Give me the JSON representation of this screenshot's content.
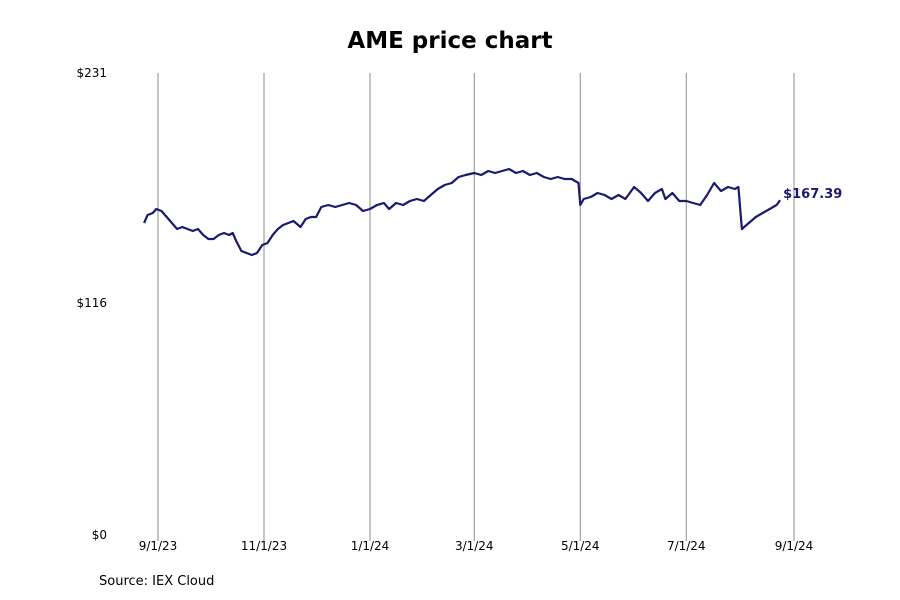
{
  "chart_data": {
    "type": "line",
    "title": "AME price chart",
    "source": "Source: IEX Cloud",
    "ylim": [
      0,
      231
    ],
    "y_ticks": [
      {
        "value": 0,
        "label": "$0"
      },
      {
        "value": 116,
        "label": "$116"
      },
      {
        "value": 231,
        "label": "$231"
      }
    ],
    "x_ticks": [
      {
        "date": "2023-09-01",
        "label": "9/1/23"
      },
      {
        "date": "2023-11-01",
        "label": "11/1/23"
      },
      {
        "date": "2024-01-01",
        "label": "1/1/24"
      },
      {
        "date": "2024-03-01",
        "label": "3/1/24"
      },
      {
        "date": "2024-05-01",
        "label": "5/1/24"
      },
      {
        "date": "2024-07-01",
        "label": "7/1/24"
      },
      {
        "date": "2024-09-01",
        "label": "9/1/24"
      }
    ],
    "grid": "vertical",
    "line_color": "#1a1a6e",
    "last_value_label": "$167.39",
    "series": [
      {
        "points": [
          [
            "2023-08-24",
            156
          ],
          [
            "2023-08-26",
            160
          ],
          [
            "2023-08-29",
            161
          ],
          [
            "2023-08-31",
            163
          ],
          [
            "2023-09-03",
            162
          ],
          [
            "2023-09-06",
            159
          ],
          [
            "2023-09-09",
            156
          ],
          [
            "2023-09-12",
            153
          ],
          [
            "2023-09-15",
            154
          ],
          [
            "2023-09-18",
            153
          ],
          [
            "2023-09-21",
            152
          ],
          [
            "2023-09-24",
            153
          ],
          [
            "2023-09-27",
            150
          ],
          [
            "2023-09-30",
            148
          ],
          [
            "2023-10-03",
            148
          ],
          [
            "2023-10-06",
            150
          ],
          [
            "2023-10-09",
            151
          ],
          [
            "2023-10-12",
            150
          ],
          [
            "2023-10-14",
            151
          ],
          [
            "2023-10-16",
            147
          ],
          [
            "2023-10-19",
            142
          ],
          [
            "2023-10-22",
            141
          ],
          [
            "2023-10-25",
            140
          ],
          [
            "2023-10-28",
            141
          ],
          [
            "2023-10-31",
            145
          ],
          [
            "2023-11-03",
            146
          ],
          [
            "2023-11-06",
            150
          ],
          [
            "2023-11-09",
            153
          ],
          [
            "2023-11-12",
            155
          ],
          [
            "2023-11-15",
            156
          ],
          [
            "2023-11-18",
            157
          ],
          [
            "2023-11-22",
            154
          ],
          [
            "2023-11-25",
            158
          ],
          [
            "2023-11-28",
            159
          ],
          [
            "2023-12-01",
            159
          ],
          [
            "2023-12-04",
            164
          ],
          [
            "2023-12-08",
            165
          ],
          [
            "2023-12-12",
            164
          ],
          [
            "2023-12-16",
            165
          ],
          [
            "2023-12-20",
            166
          ],
          [
            "2023-12-24",
            165
          ],
          [
            "2023-12-28",
            162
          ],
          [
            "2024-01-01",
            163
          ],
          [
            "2024-01-05",
            165
          ],
          [
            "2024-01-09",
            166
          ],
          [
            "2024-01-12",
            163
          ],
          [
            "2024-01-16",
            166
          ],
          [
            "2024-01-20",
            165
          ],
          [
            "2024-01-24",
            167
          ],
          [
            "2024-01-28",
            168
          ],
          [
            "2024-02-01",
            167
          ],
          [
            "2024-02-05",
            170
          ],
          [
            "2024-02-09",
            173
          ],
          [
            "2024-02-13",
            175
          ],
          [
            "2024-02-17",
            176
          ],
          [
            "2024-02-21",
            179
          ],
          [
            "2024-02-25",
            180
          ],
          [
            "2024-03-01",
            181
          ],
          [
            "2024-03-05",
            180
          ],
          [
            "2024-03-09",
            182
          ],
          [
            "2024-03-13",
            181
          ],
          [
            "2024-03-17",
            182
          ],
          [
            "2024-03-21",
            183
          ],
          [
            "2024-03-25",
            181
          ],
          [
            "2024-03-29",
            182
          ],
          [
            "2024-04-02",
            180
          ],
          [
            "2024-04-06",
            181
          ],
          [
            "2024-04-10",
            179
          ],
          [
            "2024-04-14",
            178
          ],
          [
            "2024-04-18",
            179
          ],
          [
            "2024-04-22",
            178
          ],
          [
            "2024-04-26",
            178
          ],
          [
            "2024-04-30",
            176
          ],
          [
            "2024-05-01",
            165
          ],
          [
            "2024-05-03",
            168
          ],
          [
            "2024-05-07",
            169
          ],
          [
            "2024-05-11",
            171
          ],
          [
            "2024-05-15",
            170
          ],
          [
            "2024-05-19",
            168
          ],
          [
            "2024-05-23",
            170
          ],
          [
            "2024-05-27",
            168
          ],
          [
            "2024-06-01",
            174
          ],
          [
            "2024-06-05",
            171
          ],
          [
            "2024-06-09",
            167
          ],
          [
            "2024-06-13",
            171
          ],
          [
            "2024-06-17",
            173
          ],
          [
            "2024-06-19",
            168
          ],
          [
            "2024-06-23",
            171
          ],
          [
            "2024-06-27",
            167
          ],
          [
            "2024-07-01",
            167
          ],
          [
            "2024-07-05",
            166
          ],
          [
            "2024-07-09",
            165
          ],
          [
            "2024-07-13",
            170
          ],
          [
            "2024-07-17",
            176
          ],
          [
            "2024-07-21",
            172
          ],
          [
            "2024-07-25",
            174
          ],
          [
            "2024-07-29",
            173
          ],
          [
            "2024-07-31",
            174
          ],
          [
            "2024-08-02",
            153
          ],
          [
            "2024-08-06",
            156
          ],
          [
            "2024-08-10",
            159
          ],
          [
            "2024-08-14",
            161
          ],
          [
            "2024-08-18",
            163
          ],
          [
            "2024-08-22",
            165
          ],
          [
            "2024-08-24",
            167.39
          ]
        ]
      }
    ]
  }
}
